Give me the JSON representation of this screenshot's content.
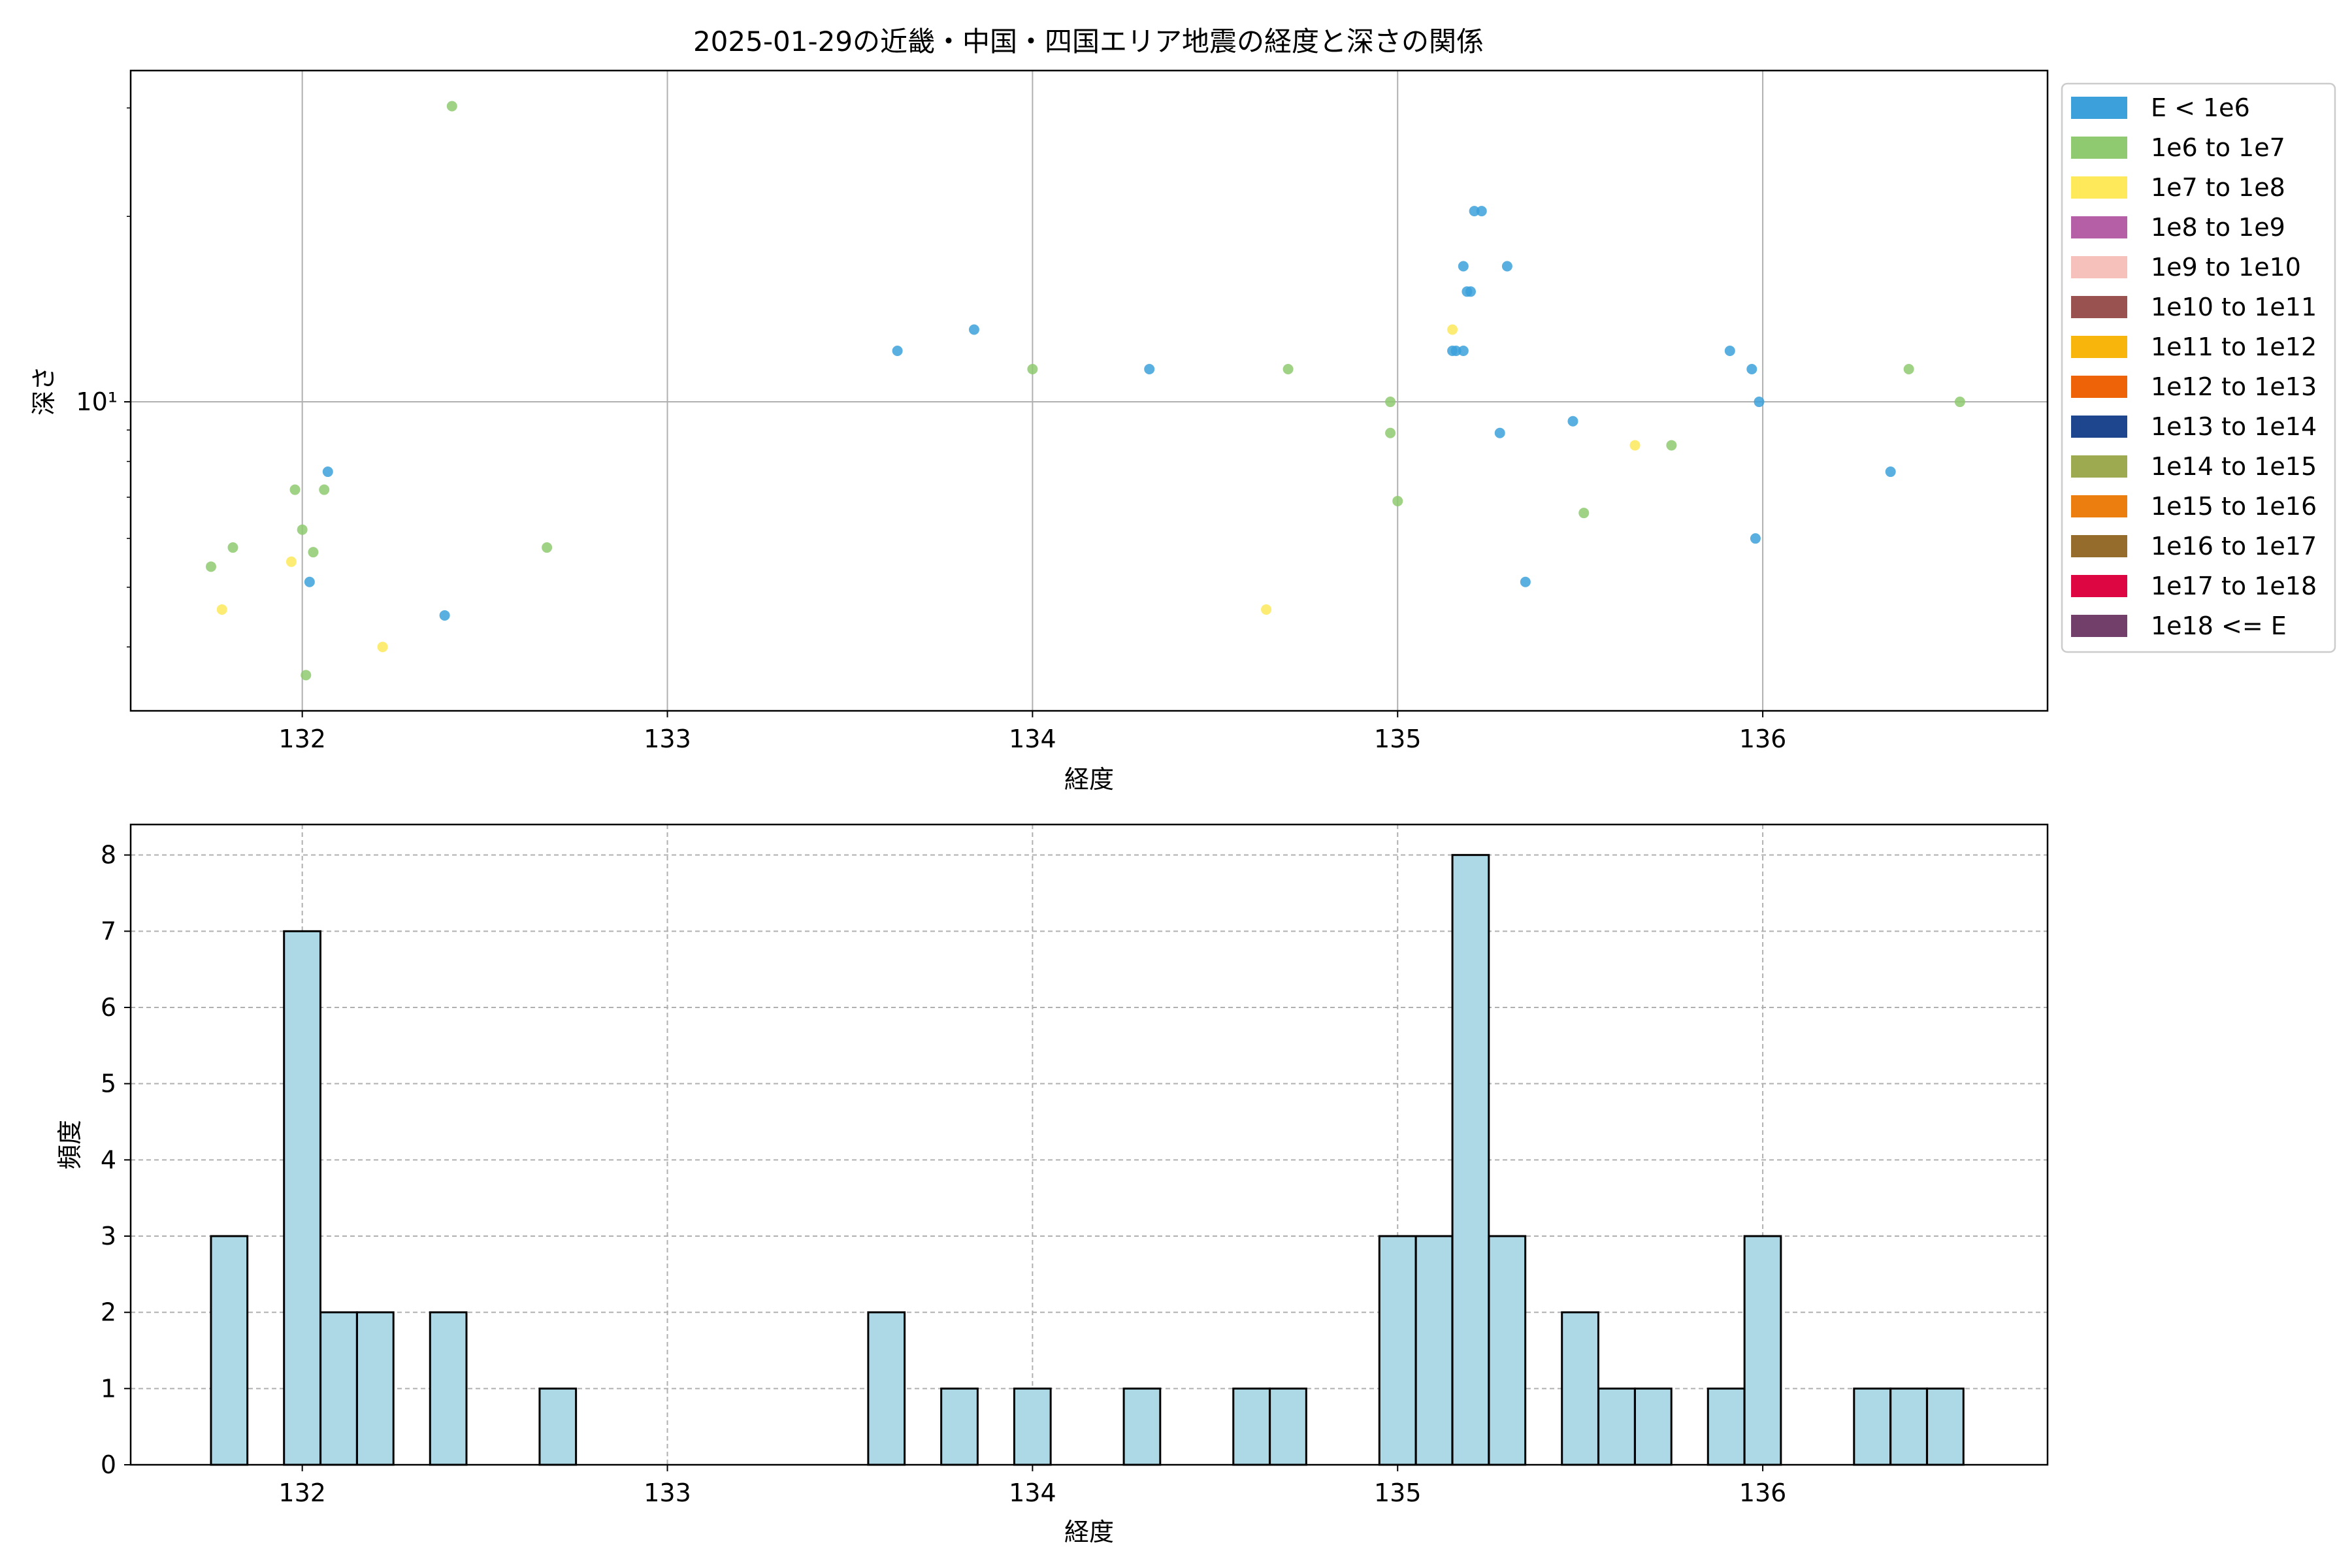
{
  "chart_data": [
    {
      "type": "scatter",
      "title": "2025-01-29の近畿・中国・四国エリア地震の経度と深さの関係",
      "xlabel": "経度",
      "ylabel": "深さ",
      "yscale": "log",
      "xlim": [
        131.53,
        136.78
      ],
      "ylim": [
        3.15,
        34.5
      ],
      "xticks": [
        132,
        133,
        134,
        135,
        136
      ],
      "xtick_labels": [
        "132",
        "133",
        "134",
        "135",
        "136"
      ],
      "yticks": [
        10
      ],
      "ytick_labels": [
        "10¹"
      ],
      "grid": true,
      "legend_position": "outside-right-top",
      "legend": [
        {
          "label": "E < 1e6",
          "color": "#3ca1db"
        },
        {
          "label": "1e6 to 1e7",
          "color": "#8fca71"
        },
        {
          "label": "1e7 to 1e8",
          "color": "#fde95a"
        },
        {
          "label": "1e8 to 1e9",
          "color": "#b55fa6"
        },
        {
          "label": "1e9 to 1e10",
          "color": "#f6c1bb"
        },
        {
          "label": "1e10 to 1e11",
          "color": "#99524f"
        },
        {
          "label": "1e11 to 1e12",
          "color": "#f8b50b"
        },
        {
          "label": "1e12 to 1e13",
          "color": "#ee6307"
        },
        {
          "label": "1e13 to 1e14",
          "color": "#1d468f"
        },
        {
          "label": "1e14 to 1e15",
          "color": "#9daa4f"
        },
        {
          "label": "1e15 to 1e16",
          "color": "#ec7d0f"
        },
        {
          "label": "1e16 to 1e17",
          "color": "#956c2c"
        },
        {
          "label": "1e17 to 1e18",
          "color": "#dd0642"
        },
        {
          "label": "1e18 <= E",
          "color": "#723f6a"
        }
      ],
      "series": [
        {
          "color": "#3ca1db",
          "points": [
            [
              132.07,
              7.7
            ],
            [
              132.02,
              5.1
            ],
            [
              132.39,
              4.5
            ],
            [
              133.63,
              12.1
            ],
            [
              133.84,
              13.1
            ],
            [
              134.32,
              11.3
            ],
            [
              135.15,
              12.1
            ],
            [
              135.18,
              16.6
            ],
            [
              135.19,
              15.1
            ],
            [
              135.2,
              15.1
            ],
            [
              135.18,
              12.1
            ],
            [
              135.21,
              20.4
            ],
            [
              135.23,
              20.4
            ],
            [
              135.3,
              16.6
            ],
            [
              135.28,
              8.9
            ],
            [
              135.35,
              5.1
            ],
            [
              135.48,
              9.3
            ],
            [
              135.91,
              12.1
            ],
            [
              135.97,
              11.3
            ],
            [
              135.99,
              10.0
            ],
            [
              135.98,
              6.0
            ],
            [
              136.35,
              7.7
            ],
            [
              135.16,
              12.1
            ]
          ]
        },
        {
          "color": "#8fca71",
          "points": [
            [
              131.75,
              5.4
            ],
            [
              131.81,
              5.8
            ],
            [
              131.98,
              7.2
            ],
            [
              132.0,
              6.2
            ],
            [
              132.03,
              5.7
            ],
            [
              132.06,
              7.2
            ],
            [
              132.01,
              3.6
            ],
            [
              132.41,
              30.2
            ],
            [
              132.67,
              5.8
            ],
            [
              134.0,
              11.3
            ],
            [
              134.7,
              11.3
            ],
            [
              134.98,
              10.0
            ],
            [
              134.98,
              8.9
            ],
            [
              135.0,
              6.9
            ],
            [
              135.51,
              6.6
            ],
            [
              135.75,
              8.5
            ],
            [
              136.4,
              11.3
            ],
            [
              136.54,
              10.0
            ]
          ]
        },
        {
          "color": "#fde95a",
          "points": [
            [
              131.78,
              4.6
            ],
            [
              131.97,
              5.5
            ],
            [
              132.22,
              4.0
            ],
            [
              134.64,
              4.6
            ],
            [
              135.15,
              13.1
            ],
            [
              135.65,
              8.5
            ]
          ]
        }
      ]
    },
    {
      "type": "bar",
      "title": "",
      "xlabel": "経度",
      "ylabel": "頻度",
      "xlim": [
        131.53,
        136.78
      ],
      "ylim": [
        0,
        8.4
      ],
      "xticks": [
        132,
        133,
        134,
        135,
        136
      ],
      "xtick_labels": [
        "132",
        "133",
        "134",
        "135",
        "136"
      ],
      "yticks": [
        0,
        1,
        2,
        3,
        4,
        5,
        6,
        7,
        8
      ],
      "ytick_labels": [
        "0",
        "1",
        "2",
        "3",
        "4",
        "5",
        "6",
        "7",
        "8"
      ],
      "grid": true,
      "bar_color": "#add8e6",
      "bin_width": 0.0997,
      "bins": [
        {
          "x0": 131.75,
          "count": 3
        },
        {
          "x0": 131.95,
          "count": 7
        },
        {
          "x0": 132.05,
          "count": 2
        },
        {
          "x0": 132.15,
          "count": 2
        },
        {
          "x0": 132.35,
          "count": 2
        },
        {
          "x0": 132.65,
          "count": 1
        },
        {
          "x0": 133.55,
          "count": 2
        },
        {
          "x0": 133.75,
          "count": 1
        },
        {
          "x0": 133.95,
          "count": 1
        },
        {
          "x0": 134.25,
          "count": 1
        },
        {
          "x0": 134.55,
          "count": 1
        },
        {
          "x0": 134.65,
          "count": 1
        },
        {
          "x0": 134.95,
          "count": 3
        },
        {
          "x0": 135.05,
          "count": 3
        },
        {
          "x0": 135.15,
          "count": 8
        },
        {
          "x0": 135.25,
          "count": 3
        },
        {
          "x0": 135.45,
          "count": 2
        },
        {
          "x0": 135.55,
          "count": 1
        },
        {
          "x0": 135.65,
          "count": 1
        },
        {
          "x0": 135.85,
          "count": 1
        },
        {
          "x0": 135.95,
          "count": 3
        },
        {
          "x0": 136.25,
          "count": 1
        },
        {
          "x0": 136.35,
          "count": 1
        },
        {
          "x0": 136.45,
          "count": 1
        }
      ]
    }
  ]
}
